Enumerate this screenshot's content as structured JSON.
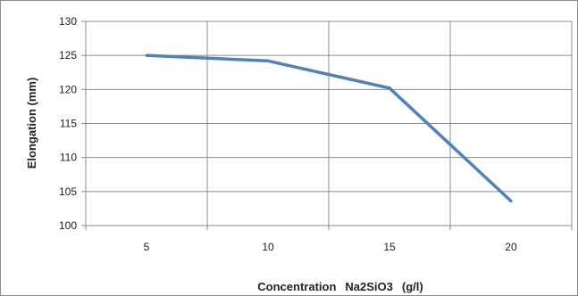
{
  "chart_data": {
    "type": "line",
    "x": [
      5,
      10,
      15,
      20
    ],
    "categories": [
      "5",
      "10",
      "15",
      "20"
    ],
    "series": [
      {
        "values": [
          125,
          124.2,
          120.2,
          103.6
        ],
        "color": "#4f81bd"
      }
    ],
    "ylabel": "Elongation (mm)",
    "xlabel_text": "Concentration",
    "xlabel_formula": "Na2SiO3",
    "xlabel_unit": "(g/l)",
    "ylim": [
      100,
      130
    ],
    "yticks": [
      "100",
      "105",
      "110",
      "115",
      "120",
      "125",
      "130"
    ],
    "grid": true,
    "legend": "none"
  }
}
